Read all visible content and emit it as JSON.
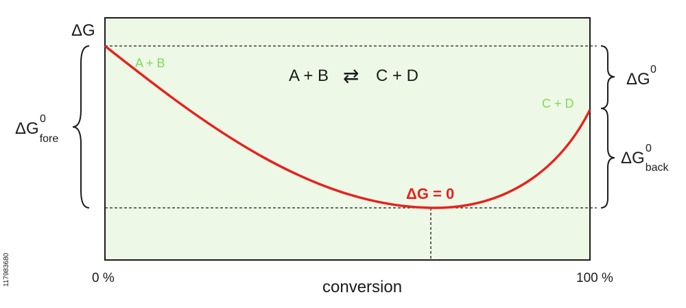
{
  "y_axis_label": "ΔG",
  "reaction": {
    "left": "A + B",
    "arrow": "⇄",
    "right": "C + D"
  },
  "start_label": "A + B",
  "end_label": "C + D",
  "equilibrium_label": "ΔG = 0",
  "x_axis": {
    "label": "conversion",
    "min_label": "0 %",
    "max_label": "100 %"
  },
  "brace_labels": {
    "fore": {
      "base": "ΔG",
      "sup": "0",
      "sub": "fore"
    },
    "standard": {
      "base": "ΔG",
      "sup": "0"
    },
    "back": {
      "base": "ΔG",
      "sup": "0",
      "sub": "back"
    }
  },
  "side_id": "117983680",
  "colors": {
    "plot_background": "#eef8e6",
    "curve": "#e8211d",
    "species_label": "#7ed957"
  },
  "curve": {
    "minimum_at_conversion_percent": 67
  }
}
